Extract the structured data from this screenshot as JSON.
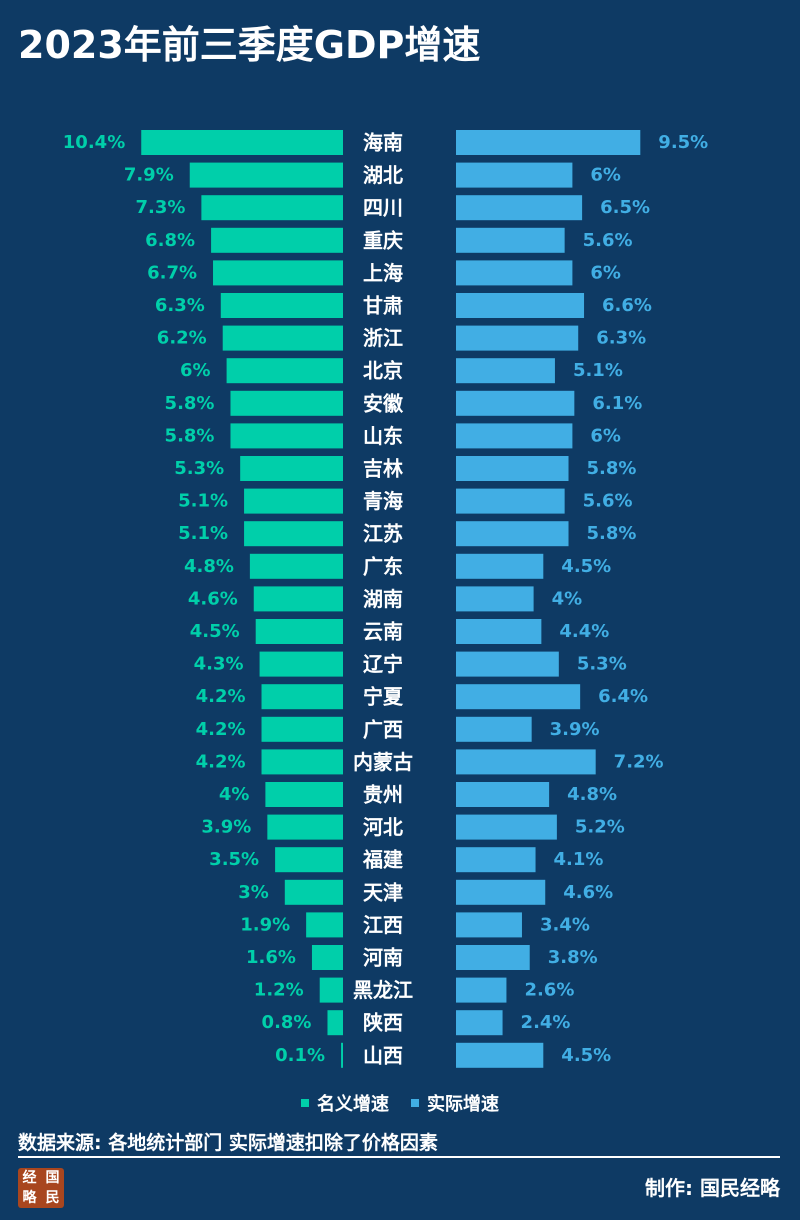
{
  "header": {
    "title": "2023年前三季度GDP增速"
  },
  "legend": {
    "nominal_label": "名义增速",
    "real_label": "实际增速"
  },
  "footer": {
    "source": "数据来源: 各地统计部门 实际增速扣除了价格因素",
    "credit": "制作:  国民经略"
  },
  "logo": {
    "chars": [
      "经",
      "国",
      "略",
      "民"
    ]
  },
  "colors": {
    "background": "#0e3a64",
    "nominal": "#00cfaa",
    "real": "#41aee4",
    "text": "#ffffff"
  },
  "chart_data": {
    "type": "bar",
    "orientation": "horizontal-butterfly",
    "title": "2023年前三季度GDP增速",
    "categories": [
      "海南",
      "湖北",
      "四川",
      "重庆",
      "上海",
      "甘肃",
      "浙江",
      "北京",
      "安徽",
      "山东",
      "吉林",
      "青海",
      "江苏",
      "广东",
      "湖南",
      "云南",
      "辽宁",
      "宁夏",
      "广西",
      "内蒙古",
      "贵州",
      "河北",
      "福建",
      "天津",
      "江西",
      "河南",
      "黑龙江",
      "陕西",
      "山西"
    ],
    "series": [
      {
        "name": "名义增速",
        "side": "left",
        "unit": "%",
        "values": [
          10.4,
          7.9,
          7.3,
          6.8,
          6.7,
          6.3,
          6.2,
          6,
          5.8,
          5.8,
          5.3,
          5.1,
          5.1,
          4.8,
          4.6,
          4.5,
          4.3,
          4.2,
          4.2,
          4.2,
          4,
          3.9,
          3.5,
          3,
          1.9,
          1.6,
          1.2,
          0.8,
          0.1
        ],
        "labels": [
          "10.4%",
          "7.9%",
          "7.3%",
          "6.8%",
          "6.7%",
          "6.3%",
          "6.2%",
          "6%",
          "5.8%",
          "5.8%",
          "5.3%",
          "5.1%",
          "5.1%",
          "4.8%",
          "4.6%",
          "4.5%",
          "4.3%",
          "4.2%",
          "4.2%",
          "4.2%",
          "4%",
          "3.9%",
          "3.5%",
          "3%",
          "1.9%",
          "1.6%",
          "1.2%",
          "0.8%",
          "0.1%"
        ]
      },
      {
        "name": "实际增速",
        "side": "right",
        "unit": "%",
        "values": [
          9.5,
          6,
          6.5,
          5.6,
          6,
          6.6,
          6.3,
          5.1,
          6.1,
          6,
          5.8,
          5.6,
          5.8,
          4.5,
          4,
          4.4,
          5.3,
          6.4,
          3.9,
          7.2,
          4.8,
          5.2,
          4.1,
          4.6,
          3.4,
          3.8,
          2.6,
          2.4,
          4.5
        ],
        "labels": [
          "9.5%",
          "6%",
          "6.5%",
          "5.6%",
          "6%",
          "6.6%",
          "6.3%",
          "5.1%",
          "6.1%",
          "6%",
          "5.8%",
          "5.6%",
          "5.8%",
          "4.5%",
          "4%",
          "4.4%",
          "5.3%",
          "6.4%",
          "3.9%",
          "7.2%",
          "4.8%",
          "5.2%",
          "4.1%",
          "4.6%",
          "3.4%",
          "3.8%",
          "2.6%",
          "2.4%",
          "4.5%"
        ]
      }
    ]
  }
}
